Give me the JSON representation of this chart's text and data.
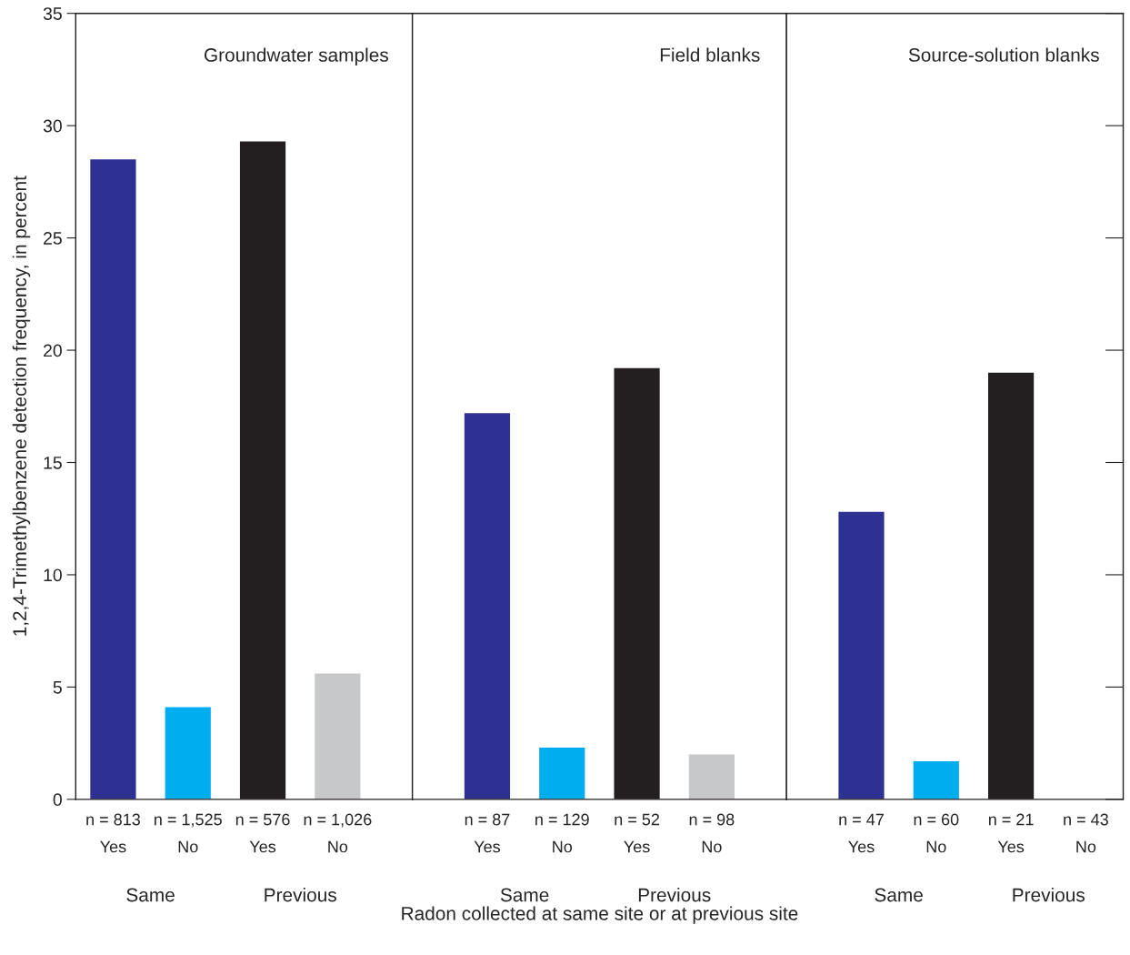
{
  "chart_data": [
    {
      "type": "bar",
      "title": "Groundwater samples",
      "ylabel": "1,2,4-Trimethylbenzene detection frequency, in percent",
      "categories": [
        "n = 813\nYes",
        "n = 1,525\nNo",
        "n = 576\nYes",
        "n = 1,026\nNo"
      ],
      "values": [
        28.5,
        4.1,
        29.3,
        5.6
      ],
      "colors": [
        "#2e3192",
        "#00aeef",
        "#231f20",
        "#c7c8ca"
      ],
      "ylim": [
        0,
        35
      ],
      "yticks": [
        0,
        5,
        10,
        15,
        20,
        25,
        30,
        35
      ],
      "annotations": [
        "Same",
        "Previous"
      ],
      "grid": false,
      "legend": false
    },
    {
      "type": "bar",
      "title": "Field blanks",
      "xlabel": "Radon collected at same site or at previous site",
      "categories": [
        "n = 87\nYes",
        "n = 129\nNo",
        "n = 52\nYes",
        "n = 98\nNo"
      ],
      "values": [
        17.2,
        2.3,
        19.2,
        2.0
      ],
      "colors": [
        "#2e3192",
        "#00aeef",
        "#231f20",
        "#c7c8ca"
      ],
      "ylim": [
        0,
        35
      ],
      "yticks": [
        0,
        5,
        10,
        15,
        20,
        25,
        30,
        35
      ],
      "tick_labels": "x",
      "annotations": [
        "Same",
        "Previous"
      ],
      "grid": false,
      "legend": false
    },
    {
      "type": "bar",
      "title": "Source-solution blanks",
      "categories": [
        "n = 47\nYes",
        "n = 60\nNo",
        "n = 21\nYes",
        "n = 43\nNo"
      ],
      "values": [
        12.8,
        1.7,
        19.0,
        0
      ],
      "colors": [
        "#2e3192",
        "#00aeef",
        "#231f20",
        "#c7c8ca"
      ],
      "ylim": [
        0,
        35
      ],
      "yticks": [
        0,
        5,
        10,
        15,
        20,
        25,
        30,
        35
      ],
      "tick_labels": "x",
      "annotations": [
        "Same",
        "Previous"
      ],
      "grid": false,
      "legend": false
    }
  ]
}
